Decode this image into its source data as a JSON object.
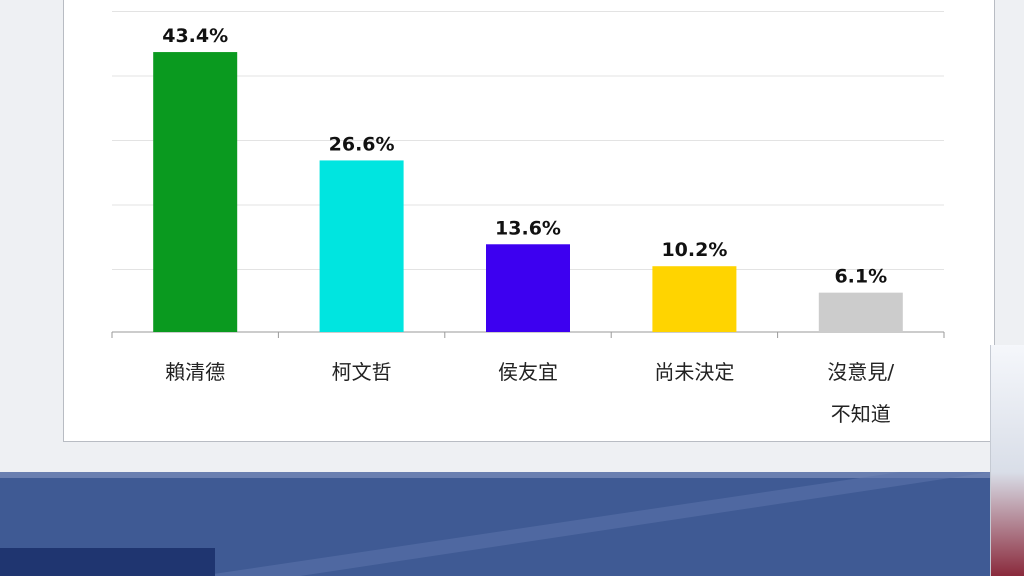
{
  "chart_data": {
    "type": "bar",
    "categories": [
      "賴清德",
      "柯文哲",
      "侯友宜",
      "尚未決定",
      "沒意見/不知道"
    ],
    "category_lines": [
      [
        "賴清德"
      ],
      [
        "柯文哲"
      ],
      [
        "侯友宜"
      ],
      [
        "尚未決定"
      ],
      [
        "沒意見/",
        "不知道"
      ]
    ],
    "values": [
      43.4,
      26.6,
      13.6,
      10.2,
      6.1
    ],
    "value_labels": [
      "43.4%",
      "26.6%",
      "13.6%",
      "10.2%",
      "6.1%"
    ],
    "colors": [
      "#0a9a1f",
      "#00e5e0",
      "#3d00f0",
      "#ffd400",
      "#cccccc"
    ],
    "ylim": [
      0,
      50
    ],
    "grid": true
  },
  "colors": {
    "footer": "#3f5a94",
    "panel": "#ffffff",
    "grid": "#e3e3e3"
  }
}
